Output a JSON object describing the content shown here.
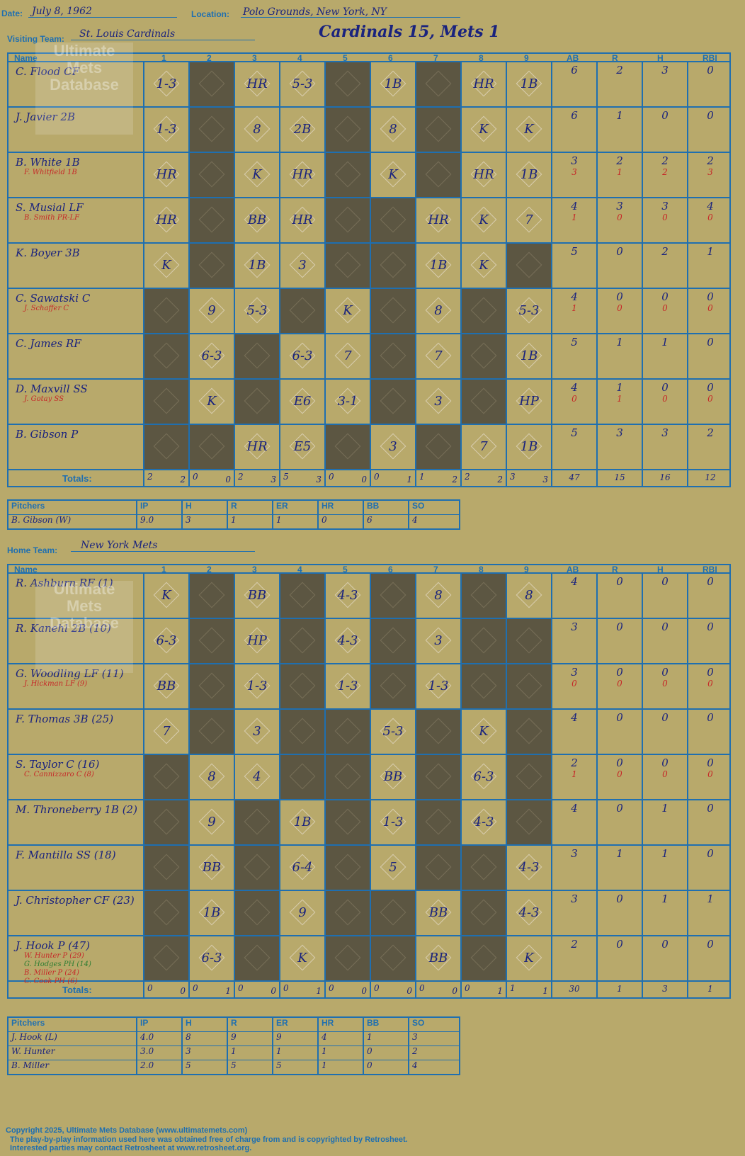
{
  "header": {
    "date_label": "Date:",
    "date": "July 8, 1962",
    "location_label": "Location:",
    "location": "Polo Grounds, New York, NY",
    "title": "Cardinals 15, Mets 1"
  },
  "visiting": {
    "label": "Visiting Team:",
    "name": "St. Louis Cardinals",
    "col_labels": [
      "Name",
      "1",
      "2",
      "3",
      "4",
      "5",
      "6",
      "7",
      "8",
      "9",
      "AB",
      "R",
      "H",
      "RBI"
    ],
    "rows": [
      {
        "name": "C. Flood CF",
        "subs": [],
        "plays": [
          "1-3",
          "",
          "HR",
          "5-3",
          "",
          "1B",
          "",
          "HR",
          "1B"
        ],
        "stats": [
          "6",
          "2",
          "3",
          "0"
        ]
      },
      {
        "name": "J. Javier 2B",
        "subs": [],
        "plays": [
          "1-3",
          "",
          "8",
          "2B",
          "",
          "8",
          "",
          "K",
          "K"
        ],
        "stats": [
          "6",
          "1",
          "0",
          "0"
        ]
      },
      {
        "name": "B. White 1B",
        "subs": [
          "F. Whitfield 1B"
        ],
        "plays": [
          "HR",
          "",
          "K",
          "HR",
          "",
          "K",
          "",
          "HR",
          "1B"
        ],
        "stats": [
          "3",
          "2",
          "2",
          "2"
        ],
        "sub_stats": [
          "3",
          "1",
          "2",
          "3"
        ]
      },
      {
        "name": "S. Musial LF",
        "subs": [
          "B. Smith PR-LF"
        ],
        "plays": [
          "HR",
          "",
          "BB",
          "HR",
          "",
          "",
          "HR",
          "K",
          "7"
        ],
        "stats": [
          "4",
          "3",
          "3",
          "4"
        ],
        "sub_stats": [
          "1",
          "0",
          "0",
          "0"
        ]
      },
      {
        "name": "K. Boyer 3B",
        "subs": [],
        "plays": [
          "K",
          "",
          "1B",
          "3",
          "",
          "",
          "1B",
          "K",
          ""
        ],
        "stats": [
          "5",
          "0",
          "2",
          "1"
        ]
      },
      {
        "name": "C. Sawatski C",
        "subs": [
          "J. Schaffer C"
        ],
        "plays": [
          "",
          "9",
          "5-3",
          "",
          "K",
          "",
          "8",
          "",
          "5-3"
        ],
        "stats": [
          "4",
          "0",
          "0",
          "0"
        ],
        "sub_stats": [
          "1",
          "0",
          "0",
          "0"
        ]
      },
      {
        "name": "C. James RF",
        "subs": [],
        "plays": [
          "",
          "6-3",
          "",
          "6-3",
          "7",
          "",
          "7",
          "",
          "1B"
        ],
        "stats": [
          "5",
          "1",
          "1",
          "0"
        ]
      },
      {
        "name": "D. Maxvill SS",
        "subs": [
          "J. Gotay SS"
        ],
        "plays": [
          "",
          "K",
          "",
          "E6",
          "3-1",
          "",
          "3",
          "",
          "HP"
        ],
        "stats": [
          "4",
          "1",
          "0",
          "0"
        ],
        "sub_stats": [
          "0",
          "1",
          "0",
          "0"
        ]
      },
      {
        "name": "B. Gibson P",
        "subs": [],
        "plays": [
          "",
          "",
          "HR",
          "E5",
          "",
          "3",
          "",
          "7",
          "1B"
        ],
        "stats": [
          "5",
          "3",
          "3",
          "2"
        ]
      }
    ],
    "dark": [
      [
        0,
        1,
        0,
        0,
        1,
        0,
        1,
        0,
        0
      ],
      [
        0,
        1,
        0,
        0,
        1,
        0,
        1,
        0,
        0
      ],
      [
        0,
        1,
        0,
        0,
        1,
        0,
        1,
        0,
        0
      ],
      [
        0,
        1,
        0,
        0,
        1,
        1,
        0,
        0,
        0
      ],
      [
        0,
        1,
        0,
        0,
        1,
        1,
        0,
        0,
        1
      ],
      [
        1,
        0,
        0,
        1,
        0,
        1,
        0,
        1,
        0
      ],
      [
        1,
        0,
        1,
        0,
        0,
        1,
        0,
        1,
        0
      ],
      [
        1,
        0,
        1,
        0,
        0,
        1,
        0,
        1,
        0
      ],
      [
        1,
        1,
        0,
        0,
        1,
        0,
        1,
        0,
        0
      ]
    ],
    "totals_label": "Totals:",
    "totals": [
      [
        "2",
        "2"
      ],
      [
        "0",
        "0"
      ],
      [
        "2",
        "3"
      ],
      [
        "5",
        "3"
      ],
      [
        "0",
        "0"
      ],
      [
        "0",
        "1"
      ],
      [
        "1",
        "2"
      ],
      [
        "2",
        "2"
      ],
      [
        "3",
        "3"
      ]
    ],
    "total_stats": [
      "47",
      "15",
      "16",
      "12"
    ],
    "pitch_head": [
      "Pitchers",
      "IP",
      "H",
      "R",
      "ER",
      "HR",
      "BB",
      "SO"
    ],
    "pitchers": [
      [
        "B. Gibson (W)",
        "9.0",
        "3",
        "1",
        "1",
        "0",
        "6",
        "4"
      ]
    ]
  },
  "home": {
    "label": "Home Team:",
    "name": "New York Mets",
    "col_labels": [
      "Name",
      "1",
      "2",
      "3",
      "4",
      "5",
      "6",
      "7",
      "8",
      "9",
      "AB",
      "R",
      "H",
      "RBI"
    ],
    "rows": [
      {
        "name": "R. Ashburn RF (1)",
        "subs": [],
        "plays": [
          "K",
          "",
          "BB",
          "",
          "4-3",
          "",
          "8",
          "",
          "8"
        ],
        "stats": [
          "4",
          "0",
          "0",
          "0"
        ]
      },
      {
        "name": "R. Kanehl 2B (10)",
        "subs": [],
        "plays": [
          "6-3",
          "",
          "HP",
          "",
          "4-3",
          "",
          "3",
          "",
          ""
        ],
        "stats": [
          "3",
          "0",
          "0",
          "0"
        ]
      },
      {
        "name": "G. Woodling LF (11)",
        "subs": [
          "J. Hickman LF (9)"
        ],
        "plays": [
          "BB",
          "",
          "1-3",
          "",
          "1-3",
          "",
          "1-3",
          "",
          ""
        ],
        "stats": [
          "3",
          "0",
          "0",
          "0"
        ],
        "sub_stats": [
          "0",
          "0",
          "0",
          "0"
        ]
      },
      {
        "name": "F. Thomas 3B (25)",
        "subs": [],
        "plays": [
          "7",
          "",
          "3",
          "",
          "",
          "5-3",
          "",
          "K",
          ""
        ],
        "stats": [
          "4",
          "0",
          "0",
          "0"
        ]
      },
      {
        "name": "S. Taylor C (16)",
        "subs": [
          "C. Cannizzaro C (8)"
        ],
        "plays": [
          "",
          "8",
          "4",
          "",
          "",
          "BB",
          "",
          "6-3",
          ""
        ],
        "stats": [
          "2",
          "0",
          "0",
          "0"
        ],
        "sub_stats": [
          "1",
          "0",
          "0",
          "0"
        ]
      },
      {
        "name": "M. Throneberry 1B (2)",
        "subs": [],
        "plays": [
          "",
          "9",
          "",
          "1B",
          "",
          "1-3",
          "",
          "4-3",
          ""
        ],
        "stats": [
          "4",
          "0",
          "1",
          "0"
        ]
      },
      {
        "name": "F. Mantilla SS (18)",
        "subs": [],
        "plays": [
          "",
          "BB",
          "",
          "6-4",
          "",
          "5",
          "",
          "",
          "4-3"
        ],
        "stats": [
          "3",
          "1",
          "1",
          "0"
        ]
      },
      {
        "name": "J. Christopher CF (23)",
        "subs": [],
        "plays": [
          "",
          "1B",
          "",
          "9",
          "",
          "",
          "BB",
          "",
          "4-3"
        ],
        "stats": [
          "3",
          "0",
          "1",
          "1"
        ]
      },
      {
        "name": "J. Hook P (47)",
        "subs": [
          "W. Hunter P (29)",
          "G. Hodges PH (14)",
          "B. Miller P (24)",
          "C. Cook PH (6)"
        ],
        "plays": [
          "",
          "6-3",
          "",
          "K",
          "",
          "",
          "BB",
          "",
          "K"
        ],
        "stats": [
          "2",
          "0",
          "0",
          "0"
        ]
      }
    ],
    "dark": [
      [
        0,
        1,
        0,
        1,
        0,
        1,
        0,
        1,
        0
      ],
      [
        0,
        1,
        0,
        1,
        0,
        1,
        0,
        1,
        1
      ],
      [
        0,
        1,
        0,
        1,
        0,
        1,
        0,
        1,
        1
      ],
      [
        0,
        1,
        0,
        1,
        1,
        0,
        1,
        0,
        1
      ],
      [
        1,
        0,
        0,
        1,
        1,
        0,
        1,
        0,
        1
      ],
      [
        1,
        0,
        1,
        0,
        1,
        0,
        1,
        0,
        1
      ],
      [
        1,
        0,
        1,
        0,
        1,
        0,
        1,
        1,
        0
      ],
      [
        1,
        0,
        1,
        0,
        1,
        1,
        0,
        1,
        0
      ],
      [
        1,
        0,
        1,
        0,
        1,
        1,
        0,
        1,
        0
      ]
    ],
    "totals_label": "Totals:",
    "totals": [
      [
        "0",
        "0"
      ],
      [
        "0",
        "1"
      ],
      [
        "0",
        "0"
      ],
      [
        "0",
        "1"
      ],
      [
        "0",
        "0"
      ],
      [
        "0",
        "0"
      ],
      [
        "0",
        "0"
      ],
      [
        "0",
        "1"
      ],
      [
        "1",
        "1"
      ]
    ],
    "total_stats": [
      "30",
      "1",
      "3",
      "1"
    ],
    "pitch_head": [
      "Pitchers",
      "IP",
      "H",
      "R",
      "ER",
      "HR",
      "BB",
      "SO"
    ],
    "pitchers": [
      [
        "J. Hook (L)",
        "4.0",
        "8",
        "9",
        "9",
        "4",
        "1",
        "3"
      ],
      [
        "W. Hunter",
        "3.0",
        "3",
        "1",
        "1",
        "1",
        "0",
        "2"
      ],
      [
        "B. Miller",
        "2.0",
        "5",
        "5",
        "5",
        "1",
        "0",
        "4"
      ]
    ]
  },
  "footer": {
    "line1": "Copyright 2025, Ultimate Mets Database (www.ultimatemets.com)",
    "line2": "The play-by-play information used here was obtained free of charge from and is copyrighted by Retrosheet.",
    "line3": "Interested parties may contact Retrosheet at www.retrosheet.org."
  },
  "watermark": "Ultimate Mets Database"
}
